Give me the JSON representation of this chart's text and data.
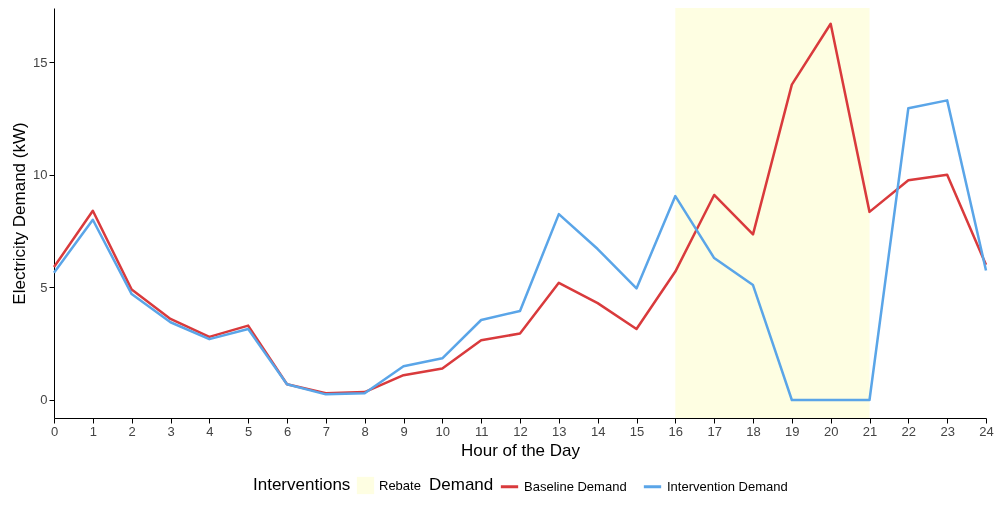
{
  "chart_data": {
    "type": "line",
    "xlabel": "Hour of the Day",
    "ylabel": "Electricity Demand (kW)",
    "legend_title": [
      "Interventions",
      "Demand"
    ],
    "x": [
      0,
      1,
      2,
      3,
      4,
      5,
      6,
      7,
      8,
      9,
      10,
      11,
      12,
      13,
      14,
      15,
      16,
      17,
      18,
      19,
      20,
      21,
      22,
      23,
      24
    ],
    "series": [
      {
        "name": "Baseline Demand",
        "color": "#d93a3c",
        "values": [
          5.9,
          8.4,
          4.9,
          3.6,
          2.8,
          3.3,
          0.7,
          0.3,
          0.35,
          1.1,
          1.4,
          2.65,
          2.95,
          5.2,
          4.3,
          3.15,
          5.7,
          9.1,
          7.35,
          14.0,
          16.7,
          8.35,
          9.75,
          10.0,
          6.0
        ]
      },
      {
        "name": "Intervention Demand",
        "color": "#5aa5e8",
        "values": [
          5.65,
          8.0,
          4.7,
          3.45,
          2.7,
          3.15,
          0.7,
          0.25,
          0.3,
          1.5,
          1.85,
          3.55,
          3.95,
          8.25,
          6.7,
          4.95,
          9.05,
          6.3,
          5.1,
          0,
          0,
          0,
          12.95,
          13.3,
          5.75
        ]
      }
    ],
    "bands": [
      {
        "axis": "x",
        "from": 16,
        "to": 21,
        "label": "Rebate",
        "color": "#fefee2"
      }
    ],
    "xlim": [
      0,
      24
    ],
    "xticks": [
      0,
      1,
      2,
      3,
      4,
      5,
      6,
      7,
      8,
      9,
      10,
      11,
      12,
      13,
      14,
      15,
      16,
      17,
      18,
      19,
      20,
      21,
      22,
      23,
      24
    ],
    "ylim": [
      -0.8,
      17.4
    ],
    "yticks": [
      0,
      5,
      10,
      15
    ],
    "grid": false,
    "legend": "bottom",
    "marker": "none",
    "line_style": "solid"
  }
}
